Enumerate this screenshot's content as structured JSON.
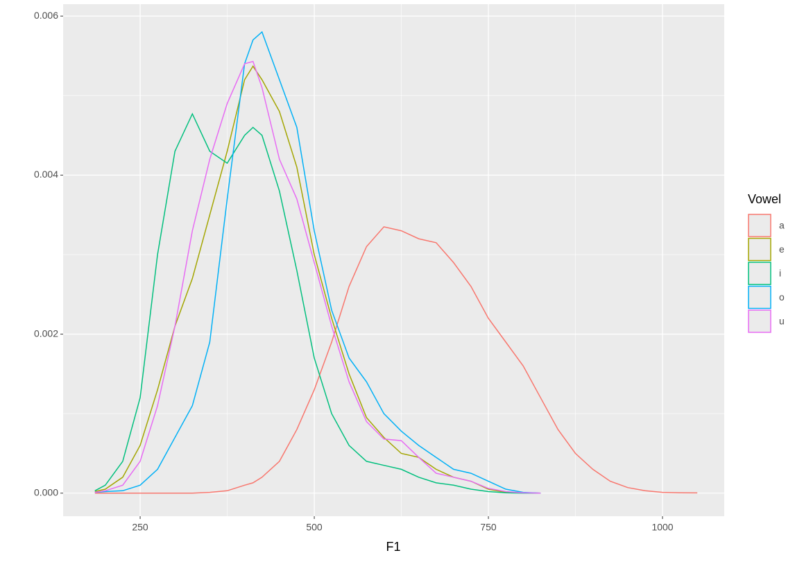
{
  "chart_data": {
    "type": "line",
    "x_label": "F1",
    "legend_title": "Vowel",
    "legend": "right",
    "grid": true,
    "x": [
      185,
      200,
      225,
      250,
      275,
      300,
      325,
      350,
      375,
      400,
      412,
      425,
      450,
      475,
      500,
      525,
      550,
      575,
      600,
      625,
      650,
      675,
      700,
      725,
      750,
      775,
      800,
      825,
      850,
      875,
      900,
      925,
      950,
      975,
      1000,
      1025,
      1050
    ],
    "series": [
      {
        "name": "a",
        "color": "#F8766D",
        "values": [
          0,
          0,
          0,
          0,
          0,
          0,
          0,
          1e-05,
          3e-05,
          0.0001,
          0.00013,
          0.0002,
          0.0004,
          0.0008,
          0.0013,
          0.0019,
          0.0026,
          0.0031,
          0.00335,
          0.0033,
          0.0032,
          0.00315,
          0.0029,
          0.0026,
          0.0022,
          0.0019,
          0.0016,
          0.0012,
          0.0008,
          0.0005,
          0.0003,
          0.00015,
          7e-05,
          3e-05,
          1e-05,
          5e-06,
          3e-06
        ]
      },
      {
        "name": "e",
        "color": "#A3A500",
        "values": [
          2e-05,
          5e-05,
          0.0002,
          0.0006,
          0.0013,
          0.0021,
          0.0027,
          0.0035,
          0.0043,
          0.0052,
          0.00537,
          0.0052,
          0.0048,
          0.0041,
          0.003,
          0.0022,
          0.0015,
          0.00095,
          0.0007,
          0.0005,
          0.00045,
          0.0003,
          0.0002,
          0.00015,
          5e-05,
          1e-05,
          3e-06,
          0,
          null,
          null,
          null,
          null,
          null,
          null,
          null,
          null,
          null
        ]
      },
      {
        "name": "i",
        "color": "#00BF7D",
        "values": [
          3e-05,
          0.0001,
          0.0004,
          0.0012,
          0.003,
          0.0043,
          0.00477,
          0.0043,
          0.00415,
          0.0045,
          0.0046,
          0.0045,
          0.0038,
          0.0028,
          0.0017,
          0.001,
          0.0006,
          0.0004,
          0.00035,
          0.0003,
          0.0002,
          0.00013,
          0.0001,
          5e-05,
          2e-05,
          5e-06,
          0,
          0,
          null,
          null,
          null,
          null,
          null,
          null,
          null,
          null,
          null
        ]
      },
      {
        "name": "o",
        "color": "#00B0F6",
        "values": [
          1e-05,
          2e-05,
          3e-05,
          0.0001,
          0.0003,
          0.0007,
          0.0011,
          0.0019,
          0.0037,
          0.0054,
          0.0057,
          0.0058,
          0.0052,
          0.0046,
          0.0033,
          0.0023,
          0.0017,
          0.0014,
          0.001,
          0.00078,
          0.0006,
          0.00045,
          0.0003,
          0.00025,
          0.00015,
          5e-05,
          1e-05,
          0,
          null,
          null,
          null,
          null,
          null,
          null,
          null,
          null,
          null
        ]
      },
      {
        "name": "u",
        "color": "#E76BF3",
        "values": [
          1e-05,
          3e-05,
          0.0001,
          0.0004,
          0.0011,
          0.0021,
          0.0033,
          0.0042,
          0.0049,
          0.0054,
          0.00543,
          0.0051,
          0.0042,
          0.0037,
          0.0029,
          0.0021,
          0.0014,
          0.0009,
          0.00068,
          0.00066,
          0.00045,
          0.00025,
          0.0002,
          0.00015,
          6e-05,
          2e-05,
          5e-06,
          0,
          null,
          null,
          null,
          null,
          null,
          null,
          null,
          null,
          null
        ]
      }
    ],
    "xlim": [
      139.4,
      1088.6
    ],
    "xticks": [
      250,
      500,
      750,
      1000
    ],
    "ylim": [
      -0.00029,
      0.00615
    ],
    "yticks": [
      {
        "value": 0,
        "label": "0.000"
      },
      {
        "value": 0.002,
        "label": "0.002"
      },
      {
        "value": 0.004,
        "label": "0.004"
      },
      {
        "value": 0.006,
        "label": "0.006"
      }
    ]
  }
}
